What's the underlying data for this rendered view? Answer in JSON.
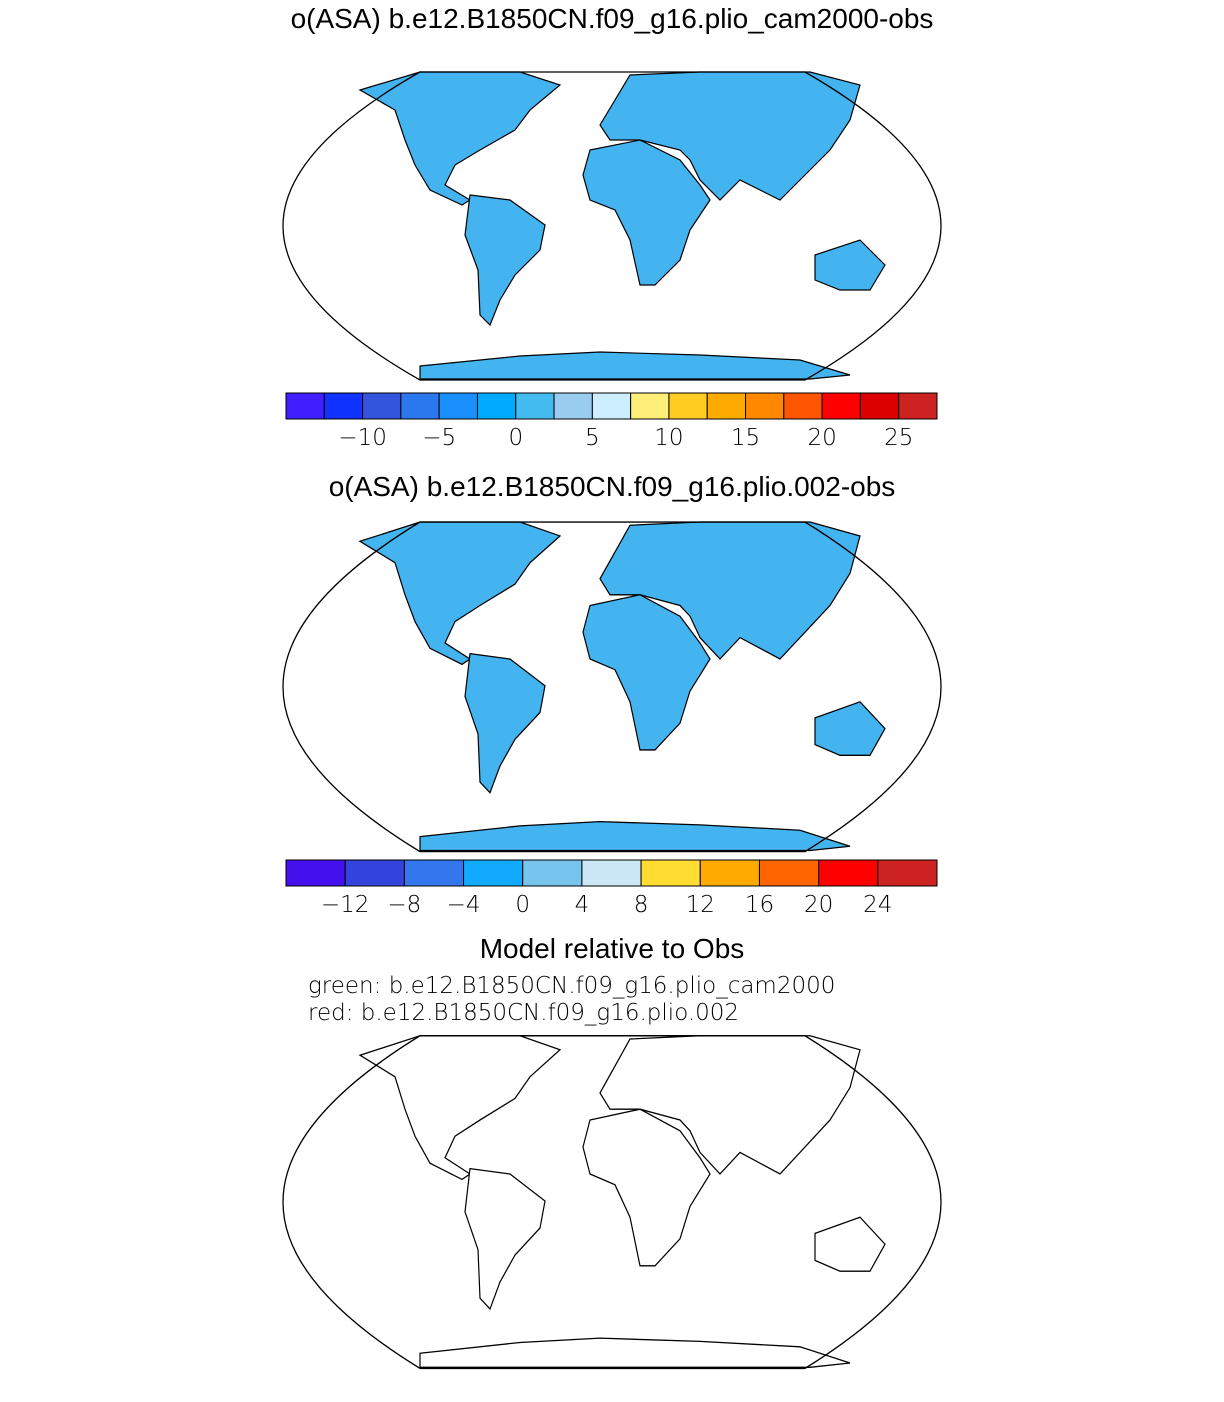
{
  "panels": [
    {
      "title": "o(ASA) b.e12.B1850CN.f09_g16.plio_cam2000-obs",
      "colorbar": {
        "lim": [
          -15,
          27.5
        ],
        "colors": [
          "#3f1fff",
          "#1133ff",
          "#3355dd",
          "#2a77ee",
          "#1a90ff",
          "#00aaff",
          "#44bbee",
          "#99ccee",
          "#cceeff",
          "#ffee77",
          "#ffcc22",
          "#ffaa00",
          "#ff8800",
          "#ff5500",
          "#ff0000",
          "#dd0000",
          "#cc2222"
        ],
        "ticks": [
          {
            "value": -10,
            "label": "−10"
          },
          {
            "value": -5,
            "label": "−5"
          },
          0,
          5,
          10,
          15,
          20,
          25
        ]
      }
    },
    {
      "title": "o(ASA) b.e12.B1850CN.f09_g16.plio.002-obs",
      "colorbar": {
        "lim": [
          -16,
          28
        ],
        "colors": [
          "#4411ee",
          "#3344dd",
          "#3377ee",
          "#11aaff",
          "#77c4ee",
          "#cce8f7",
          "#ffdd33",
          "#ffaa00",
          "#ff6600",
          "#ff0000",
          "#cc2222"
        ],
        "ticks": [
          {
            "value": -12,
            "label": "−12"
          },
          {
            "value": -8,
            "label": "−8"
          },
          {
            "value": -4,
            "label": "−4"
          },
          0,
          4,
          8,
          12,
          16,
          20,
          24
        ]
      }
    }
  ],
  "comparison": {
    "title": "Model relative to Obs",
    "lines": [
      "green: b.e12.B1850CN.f09_g16.plio_cam2000",
      "red: b.e12.B1850CN.f09_g16.plio.002"
    ]
  }
}
